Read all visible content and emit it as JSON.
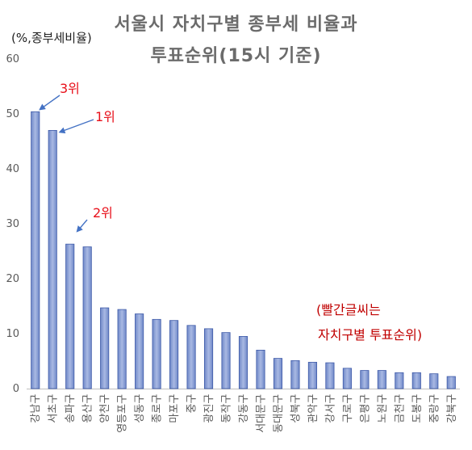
{
  "chart_data": {
    "type": "bar",
    "title_line1": "서울시 자치구별 종부세 비율과",
    "title_line2": "투표순위(15시 기준)",
    "ylabel": "(%,종부세비율)",
    "xlabel": "",
    "ylim": [
      0,
      60
    ],
    "yticks": [
      0,
      10,
      20,
      30,
      40,
      50,
      60
    ],
    "grid": false,
    "bar_color": "#8da2d6",
    "bar_edge_color": "#3e5aa8",
    "annotation_color": "#e8101a",
    "categories": [
      "강남구",
      "서초구",
      "송파구",
      "용산구",
      "양천구",
      "영등포구",
      "성동구",
      "종로구",
      "마포구",
      "중구",
      "광진구",
      "동작구",
      "강동구",
      "서대문구",
      "동대문구",
      "성북구",
      "관악구",
      "강서구",
      "구로구",
      "은평구",
      "노원구",
      "금천구",
      "도봉구",
      "중랑구",
      "강북구"
    ],
    "values": [
      50.4,
      47.0,
      26.3,
      25.8,
      14.7,
      14.4,
      13.6,
      12.6,
      12.4,
      11.5,
      10.9,
      10.2,
      9.5,
      7.0,
      5.5,
      5.1,
      4.8,
      4.7,
      3.7,
      3.3,
      3.3,
      2.9,
      2.9,
      2.7,
      2.2
    ],
    "annotations": [
      {
        "text": "3위",
        "category": "강남구"
      },
      {
        "text": "1위",
        "category": "서초구"
      },
      {
        "text": "2위",
        "category": "송파구"
      }
    ],
    "note_lines": [
      "(빨간글씨는",
      "자치구별 투표순위)"
    ]
  }
}
